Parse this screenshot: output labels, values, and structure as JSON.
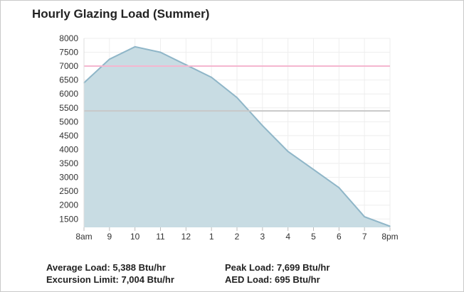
{
  "chart_data": {
    "type": "area",
    "title": "Hourly Glazing Load (Summer)",
    "xlabel": "",
    "ylabel": "",
    "categories": [
      "8am",
      "9",
      "10",
      "11",
      "12",
      "1",
      "2",
      "3",
      "4",
      "5",
      "6",
      "7",
      "8pm"
    ],
    "series": [
      {
        "values": [
          6400,
          7250,
          7699,
          7500,
          7050,
          6600,
          5870,
          4860,
          3930,
          3280,
          2630,
          1580,
          1240
        ]
      }
    ],
    "reference_lines": [
      {
        "value": 7004,
        "color": "#f4b6cf"
      },
      {
        "value": 5388,
        "color": "#c8c8c8"
      }
    ],
    "ylim": [
      1200,
      8000
    ],
    "yticks": [
      1500,
      2000,
      2500,
      3000,
      3500,
      4000,
      4500,
      5000,
      5500,
      6000,
      6500,
      7000,
      7500,
      8000
    ],
    "grid": true,
    "legend": "none",
    "colors": {
      "area_fill": "#c8dce3",
      "area_line": "#8fb6c8",
      "grid": "#eeeeee"
    }
  },
  "stats": {
    "average": "Average Load: 5,388 Btu/hr",
    "excursion": "Excursion Limit: 7,004 Btu/hr",
    "peak": "Peak Load: 7,699 Btu/hr",
    "aed": "AED Load: 695 Btu/hr"
  }
}
